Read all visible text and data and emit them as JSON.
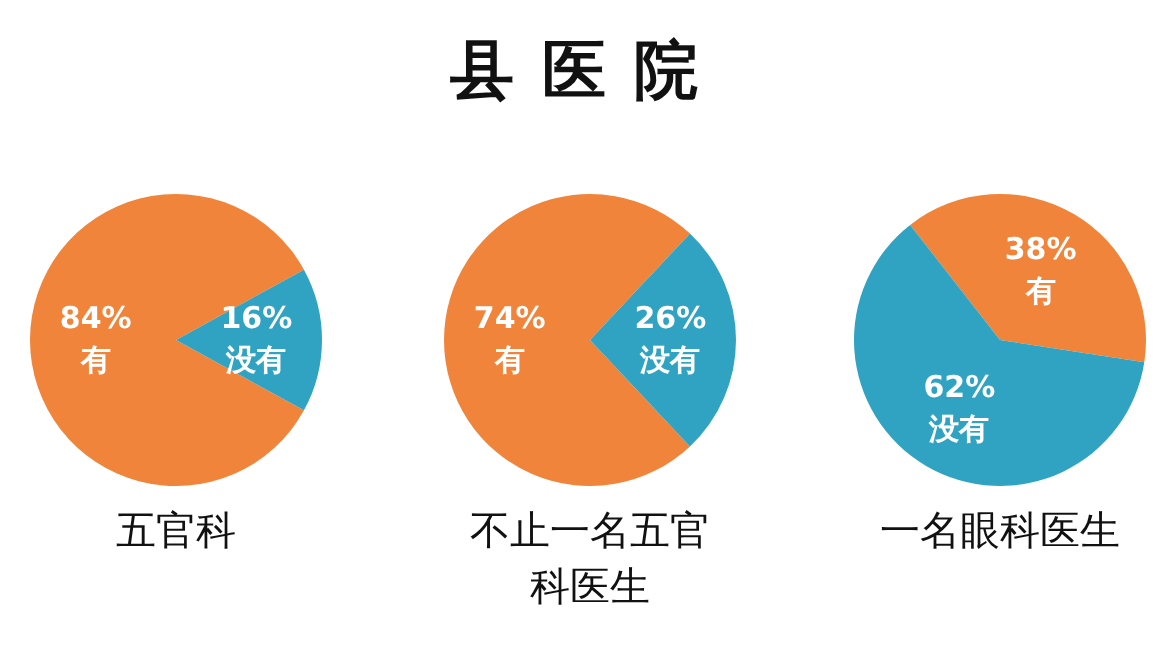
{
  "chart_data": [
    {
      "type": "other",
      "title": "县医院"
    },
    {
      "type": "pie",
      "title": "五官科",
      "categories": [
        "有",
        "没有"
      ],
      "values": [
        84,
        16
      ],
      "colors": [
        "#f0843a",
        "#2fa3c1"
      ],
      "value_labels": [
        "84%",
        "16%"
      ]
    },
    {
      "type": "pie",
      "title": "不止一名五官科医生",
      "categories": [
        "有",
        "没有"
      ],
      "values": [
        74,
        26
      ],
      "colors": [
        "#f0843a",
        "#2fa3c1"
      ],
      "value_labels": [
        "74%",
        "26%"
      ]
    },
    {
      "type": "pie",
      "title": "一名眼科医生",
      "categories": [
        "有",
        "没有"
      ],
      "values": [
        38,
        62
      ],
      "colors": [
        "#f0843a",
        "#2fa3c1"
      ],
      "value_labels": [
        "38%",
        "62%"
      ]
    }
  ]
}
